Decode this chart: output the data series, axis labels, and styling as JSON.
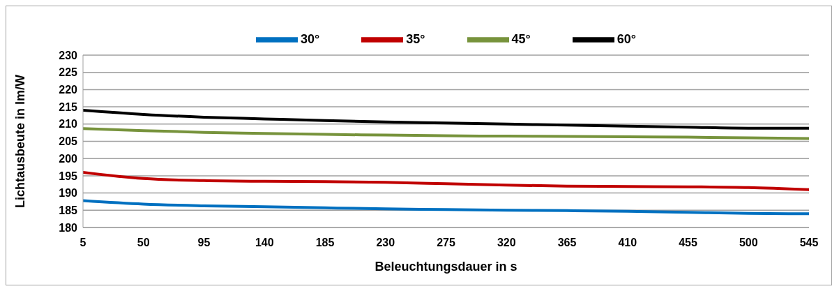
{
  "chart_data": {
    "type": "line",
    "xlabel": "Beleuchtungsdauer in s",
    "ylabel": "Lichtausbeute in lm/W",
    "x": [
      5,
      50,
      95,
      140,
      185,
      230,
      275,
      320,
      365,
      410,
      455,
      500,
      545
    ],
    "xlim": [
      5,
      545
    ],
    "xticks": [
      5,
      50,
      95,
      140,
      185,
      230,
      275,
      320,
      365,
      410,
      455,
      500,
      545
    ],
    "ylim": [
      180,
      230
    ],
    "yticks": [
      180,
      185,
      190,
      195,
      200,
      205,
      210,
      215,
      220,
      225,
      230
    ],
    "grid": "y",
    "legend": "top",
    "marker": "none",
    "line_style": "solid",
    "series": [
      {
        "name": "60°",
        "color": "#000000",
        "values": [
          214,
          212.8,
          212,
          211.5,
          211,
          210.6,
          210.3,
          210,
          209.7,
          209.4,
          209.1,
          208.8,
          208.8
        ]
      },
      {
        "name": "45°",
        "color": "#77933c",
        "values": [
          208.7,
          208.1,
          207.6,
          207.3,
          207,
          206.8,
          206.6,
          206.5,
          206.4,
          206.3,
          206.2,
          206,
          205.8
        ]
      },
      {
        "name": "35°",
        "color": "#c00000",
        "values": [
          196,
          194.2,
          193.6,
          193.4,
          193.3,
          193.1,
          192.7,
          192.3,
          192,
          191.9,
          191.8,
          191.6,
          191
        ]
      },
      {
        "name": "30°",
        "color": "#0070c0",
        "values": [
          187.8,
          186.8,
          186.3,
          186,
          185.7,
          185.4,
          185.2,
          185,
          184.9,
          184.7,
          184.4,
          184.1,
          184
        ]
      }
    ]
  }
}
